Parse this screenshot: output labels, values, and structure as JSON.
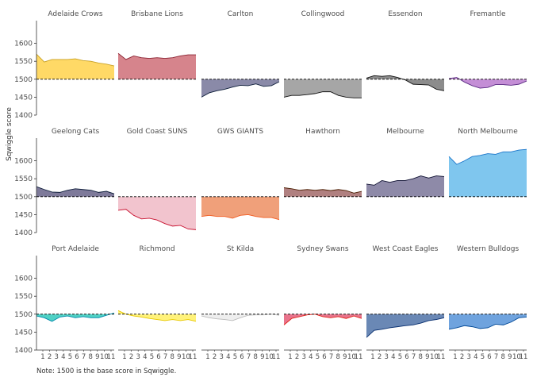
{
  "chart_data": {
    "type": "area",
    "ylabel": "Sqwiggle score",
    "caption": "Note: 1500 is the base score in Sqwiggle.",
    "baseline": 1500,
    "ylim": [
      1400,
      1650
    ],
    "yticks": [
      1400,
      1450,
      1500,
      1550,
      1600
    ],
    "rounds": [
      1,
      2,
      3,
      4,
      5,
      6,
      7,
      8,
      9,
      10,
      11
    ],
    "x_tick_labels": [
      "1",
      "2",
      "3",
      "4",
      "5",
      "6",
      "7",
      "8",
      "9",
      "10",
      "11"
    ],
    "panels": [
      {
        "name": "Adelaide Crows",
        "color": "#FFD966",
        "stroke": "#C9A227",
        "values": [
          1570,
          1548,
          1555,
          1555,
          1555,
          1557,
          1552,
          1550,
          1545,
          1542,
          1537
        ]
      },
      {
        "name": "Brisbane Lions",
        "color": "#D6848C",
        "stroke": "#8B2332",
        "values": [
          1572,
          1555,
          1565,
          1560,
          1558,
          1560,
          1558,
          1560,
          1565,
          1568,
          1568
        ]
      },
      {
        "name": "Carlton",
        "color": "#8A8AA8",
        "stroke": "#0E1E3A",
        "values": [
          1450,
          1462,
          1468,
          1472,
          1478,
          1483,
          1482,
          1487,
          1480,
          1482,
          1493
        ]
      },
      {
        "name": "Collingwood",
        "color": "#A6A6A6",
        "stroke": "#111111",
        "values": [
          1450,
          1455,
          1455,
          1457,
          1460,
          1465,
          1465,
          1455,
          1450,
          1448,
          1448
        ]
      },
      {
        "name": "Essendon",
        "color": "#8C8C8C",
        "stroke": "#111111",
        "values": [
          1503,
          1510,
          1508,
          1510,
          1505,
          1498,
          1486,
          1485,
          1484,
          1472,
          1468
        ]
      },
      {
        "name": "Fremantle",
        "color": "#C48ED6",
        "stroke": "#5B2C83",
        "values": [
          1502,
          1505,
          1492,
          1482,
          1475,
          1477,
          1485,
          1485,
          1483,
          1486,
          1495
        ]
      },
      {
        "name": "Geelong Cats",
        "color": "#7E7A9A",
        "stroke": "#0E1E3A",
        "values": [
          1528,
          1520,
          1513,
          1512,
          1518,
          1522,
          1520,
          1518,
          1512,
          1515,
          1508
        ]
      },
      {
        "name": "Gold Coast SUNS",
        "color": "#F2C4CE",
        "stroke": "#C8102E",
        "values": [
          1462,
          1465,
          1448,
          1438,
          1440,
          1435,
          1425,
          1418,
          1420,
          1410,
          1408
        ]
      },
      {
        "name": "GWS GIANTS",
        "color": "#F0A07A",
        "stroke": "#F15C22",
        "values": [
          1445,
          1448,
          1445,
          1445,
          1440,
          1448,
          1450,
          1445,
          1442,
          1442,
          1436
        ]
      },
      {
        "name": "Hawthorn",
        "color": "#B08080",
        "stroke": "#4D2004",
        "values": [
          1525,
          1522,
          1518,
          1520,
          1518,
          1520,
          1517,
          1520,
          1517,
          1510,
          1515
        ]
      },
      {
        "name": "Melbourne",
        "color": "#8E8AA8",
        "stroke": "#0F1131",
        "values": [
          1535,
          1532,
          1545,
          1540,
          1545,
          1545,
          1550,
          1558,
          1552,
          1558,
          1556
        ]
      },
      {
        "name": "North Melbourne",
        "color": "#7FC6EE",
        "stroke": "#1A75C9",
        "values": [
          1612,
          1590,
          1600,
          1612,
          1615,
          1620,
          1618,
          1625,
          1625,
          1630,
          1632
        ]
      },
      {
        "name": "Port Adelaide",
        "color": "#4FD1C5",
        "stroke": "#008AAB",
        "values": [
          1495,
          1490,
          1480,
          1492,
          1495,
          1490,
          1493,
          1490,
          1490,
          1497,
          1503
        ]
      },
      {
        "name": "Richmond",
        "color": "#FFF27A",
        "stroke": "#E8C800",
        "values": [
          1510,
          1500,
          1495,
          1492,
          1488,
          1485,
          1482,
          1485,
          1482,
          1485,
          1480
        ]
      },
      {
        "name": "St Kilda",
        "color": "#EEEEEE",
        "stroke": "#BBBBBB",
        "values": [
          1495,
          1490,
          1487,
          1485,
          1482,
          1490,
          1497,
          1498,
          1498,
          1500,
          1497
        ]
      },
      {
        "name": "Sydney Swans",
        "color": "#E8748C",
        "stroke": "#E1251B",
        "values": [
          1470,
          1488,
          1493,
          1498,
          1500,
          1493,
          1490,
          1493,
          1488,
          1495,
          1488
        ]
      },
      {
        "name": "West Coast Eagles",
        "color": "#6A88B5",
        "stroke": "#062D6E",
        "values": [
          1435,
          1455,
          1458,
          1462,
          1465,
          1468,
          1470,
          1475,
          1482,
          1485,
          1490
        ]
      },
      {
        "name": "Western Bulldogs",
        "color": "#6FA3DE",
        "stroke": "#014896",
        "values": [
          1458,
          1462,
          1468,
          1465,
          1460,
          1462,
          1472,
          1470,
          1478,
          1490,
          1492
        ]
      }
    ]
  }
}
